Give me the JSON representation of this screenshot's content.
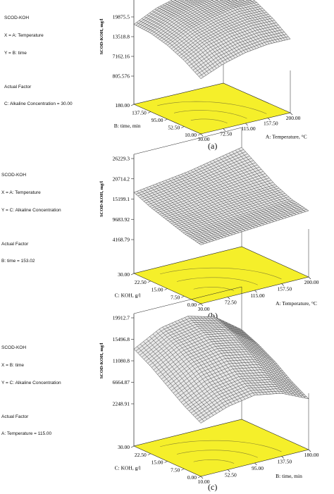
{
  "figure": {
    "captions": [
      "(a)",
      "(b)",
      "(c)"
    ]
  },
  "panels": [
    {
      "info_lines": [
        "SCOD-KOH",
        "X = A: Temperature",
        "Y = B: time"
      ],
      "actual_heading": "Actual Factor",
      "actual_value": "C: Alkaline Concentration = 30.00",
      "z_label": "SCOD-KOH, mg/l",
      "z_ticks": [
        "26231.9",
        "19875.5",
        "13518.8",
        "7162.16",
        "805.576"
      ],
      "x_ticks": [
        "30.00",
        "72.50",
        "115.00",
        "157.50",
        "200.00"
      ],
      "x_label": "A: Temperature, °C",
      "y_ticks": [
        "10.00",
        "52.50",
        "95.00",
        "137.50",
        "180.00"
      ],
      "y_label": "B: time, min",
      "caption": "(a)"
    },
    {
      "info_lines": [
        "SCOD-KOH",
        "X = A: Temperature",
        "Y = C: Alkaline Concentration"
      ],
      "actual_heading": "Actual Factor",
      "actual_value": "B: time = 153.02",
      "z_label": "SCOD-KOH, mg/l",
      "z_ticks": [
        "26229.3",
        "20714.2",
        "15199.1",
        "9683.92",
        "4168.79"
      ],
      "x_ticks": [
        "30.00",
        "72.50",
        "115.00",
        "157.50",
        "200.00"
      ],
      "x_label": "A: Temperature, °C",
      "y_ticks": [
        "0.00",
        "7.50",
        "15.00",
        "22.50",
        "30.00"
      ],
      "y_label": "C: KOH, g/l",
      "caption": "(b)"
    },
    {
      "info_lines": [
        "SCOD-KOH",
        "X = B: time",
        "Y = C: Alkaline Concentration"
      ],
      "actual_heading": "Actual Factor",
      "actual_value": "A: Temperature = 115.00",
      "z_label": "SCOD-KOH, mg/l",
      "z_ticks": [
        "19912.7",
        "15496.8",
        "11080.8",
        "6664.87",
        "2248.91"
      ],
      "x_ticks": [
        "10.00",
        "52.50",
        "95.00",
        "137.50",
        "180.00"
      ],
      "x_label": "B: time, min",
      "y_ticks": [
        "0.00",
        "7.50",
        "15.00",
        "22.50",
        "30.00"
      ],
      "y_label": "C: KOH, g/l",
      "caption": "(c)"
    }
  ],
  "colors": {
    "mesh": "#2a2a2a",
    "floor": "#f5ef2a",
    "contour": "#8a8530",
    "axis": "#222222"
  },
  "chart_data": [
    {
      "type": "surface",
      "title": "SCOD-KOH",
      "x_factor": "A: Temperature",
      "y_factor": "B: time",
      "z_unit": "mg/l",
      "x_range": [
        30,
        200
      ],
      "y_range": [
        10,
        180
      ],
      "z_range": [
        805.576,
        26231.9
      ],
      "z_grid_rows_x_by_y": [
        [
          9500,
          13000,
          15500,
          17000,
          17500
        ],
        [
          12500,
          16500,
          19000,
          20500,
          21000
        ],
        [
          14500,
          18500,
          21000,
          22500,
          23000
        ],
        [
          15500,
          19500,
          22500,
          23500,
          24000
        ],
        [
          15500,
          19500,
          22500,
          24000,
          24500
        ]
      ]
    },
    {
      "type": "surface",
      "title": "SCOD-KOH",
      "x_factor": "A: Temperature",
      "y_factor": "C: Alkaline Concentration",
      "z_unit": "mg/l",
      "x_range": [
        30,
        200
      ],
      "y_range": [
        0,
        30
      ],
      "z_range": [
        4168.79,
        26229.3
      ],
      "z_grid_rows_x_by_y": [
        [
          11000,
          12000,
          13500,
          15000,
          17000
        ],
        [
          11500,
          12500,
          14000,
          16000,
          18000
        ],
        [
          12000,
          13000,
          15000,
          17000,
          19000
        ],
        [
          12500,
          13500,
          15500,
          18000,
          20500
        ],
        [
          13000,
          14000,
          16000,
          19000,
          22000
        ]
      ]
    },
    {
      "type": "surface",
      "title": "SCOD-KOH",
      "x_factor": "B: time",
      "y_factor": "C: Alkaline Concentration",
      "z_unit": "mg/l",
      "x_range": [
        10,
        180
      ],
      "y_range": [
        0,
        30
      ],
      "z_range": [
        2248.91,
        19912.7
      ],
      "z_grid_rows_x_by_y": [
        [
          4500,
          6500,
          9000,
          11500,
          13500
        ],
        [
          6500,
          9000,
          12000,
          14500,
          16500
        ],
        [
          7500,
          10000,
          13000,
          15500,
          17500
        ],
        [
          6500,
          9000,
          12000,
          14500,
          16000
        ],
        [
          4000,
          6000,
          8500,
          10500,
          12000
        ]
      ]
    }
  ]
}
